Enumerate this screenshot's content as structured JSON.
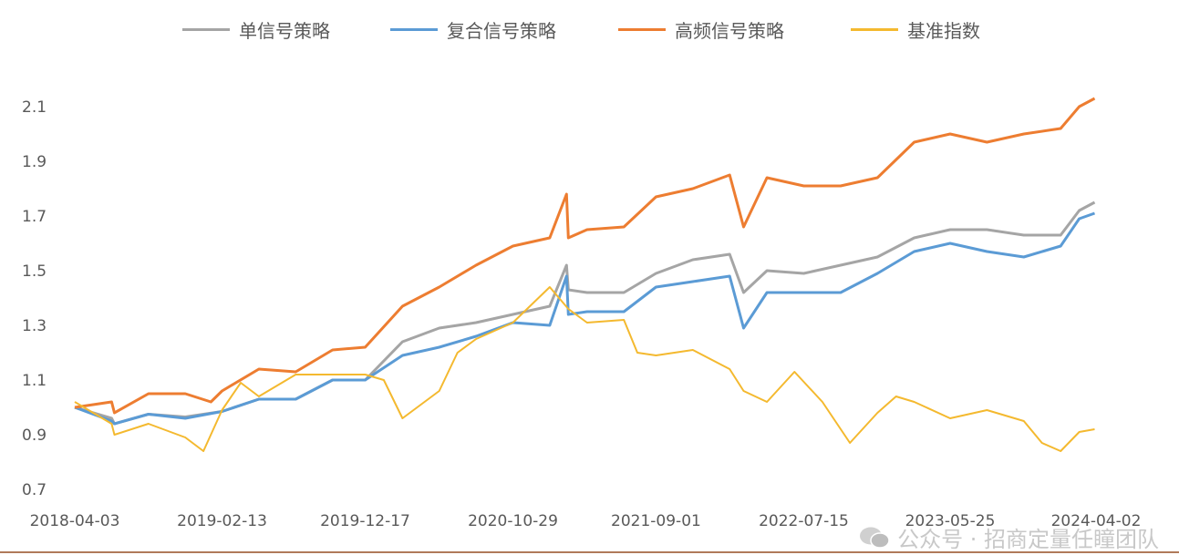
{
  "chart_data": {
    "type": "line",
    "title": "",
    "xlabel": "",
    "ylabel": "",
    "ylim": [
      0.7,
      2.2
    ],
    "y_ticks": [
      "0.7",
      "0.9",
      "1.1",
      "1.3",
      "1.5",
      "1.7",
      "1.9",
      "2.1"
    ],
    "x_ticks": [
      "2018-04-03",
      "2019-02-13",
      "2019-12-17",
      "2020-10-29",
      "2021-09-01",
      "2022-07-15",
      "2023-05-25",
      "2024-04-02"
    ],
    "grid": false,
    "legend_position": "top",
    "series": [
      {
        "name": "单信号策略",
        "color": "#A5A5A5",
        "points": [
          [
            "2018-04-03",
            1.0
          ],
          [
            "2018-06-21",
            0.96
          ],
          [
            "2018-06-27",
            0.94
          ],
          [
            "2018-09-08",
            0.975
          ],
          [
            "2018-11-26",
            0.965
          ],
          [
            "2019-02-13",
            0.985
          ],
          [
            "2019-05-03",
            1.03
          ],
          [
            "2019-07-21",
            1.03
          ],
          [
            "2019-10-08",
            1.1
          ],
          [
            "2019-12-17",
            1.1
          ],
          [
            "2020-03-06",
            1.24
          ],
          [
            "2020-05-24",
            1.29
          ],
          [
            "2020-08-11",
            1.31
          ],
          [
            "2020-10-29",
            1.34
          ],
          [
            "2021-01-16",
            1.37
          ],
          [
            "2021-02-21",
            1.52
          ],
          [
            "2021-02-25",
            1.43
          ],
          [
            "2021-04-06",
            1.42
          ],
          [
            "2021-06-24",
            1.42
          ],
          [
            "2021-09-01",
            1.49
          ],
          [
            "2021-11-19",
            1.54
          ],
          [
            "2022-02-06",
            1.56
          ],
          [
            "2022-03-08",
            1.42
          ],
          [
            "2022-04-27",
            1.5
          ],
          [
            "2022-07-15",
            1.49
          ],
          [
            "2022-10-02",
            1.52
          ],
          [
            "2022-12-20",
            1.55
          ],
          [
            "2023-03-09",
            1.62
          ],
          [
            "2023-05-25",
            1.65
          ],
          [
            "2023-08-12",
            1.65
          ],
          [
            "2023-10-30",
            1.63
          ],
          [
            "2024-01-17",
            1.63
          ],
          [
            "2024-02-26",
            1.72
          ],
          [
            "2024-03-30",
            1.75
          ]
        ]
      },
      {
        "name": "复合信号策略",
        "color": "#5B9BD5",
        "points": [
          [
            "2018-04-03",
            1.0
          ],
          [
            "2018-06-21",
            0.95
          ],
          [
            "2018-06-27",
            0.94
          ],
          [
            "2018-09-08",
            0.975
          ],
          [
            "2018-11-26",
            0.96
          ],
          [
            "2019-02-13",
            0.985
          ],
          [
            "2019-05-03",
            1.03
          ],
          [
            "2019-07-21",
            1.03
          ],
          [
            "2019-10-08",
            1.1
          ],
          [
            "2019-12-17",
            1.1
          ],
          [
            "2020-03-06",
            1.19
          ],
          [
            "2020-05-24",
            1.22
          ],
          [
            "2020-08-11",
            1.26
          ],
          [
            "2020-10-29",
            1.31
          ],
          [
            "2021-01-16",
            1.3
          ],
          [
            "2021-02-21",
            1.48
          ],
          [
            "2021-02-25",
            1.34
          ],
          [
            "2021-04-06",
            1.35
          ],
          [
            "2021-06-24",
            1.35
          ],
          [
            "2021-09-01",
            1.44
          ],
          [
            "2021-11-19",
            1.46
          ],
          [
            "2022-02-06",
            1.48
          ],
          [
            "2022-03-08",
            1.29
          ],
          [
            "2022-04-27",
            1.42
          ],
          [
            "2022-07-15",
            1.42
          ],
          [
            "2022-10-02",
            1.42
          ],
          [
            "2022-12-20",
            1.49
          ],
          [
            "2023-03-09",
            1.57
          ],
          [
            "2023-05-25",
            1.6
          ],
          [
            "2023-08-12",
            1.57
          ],
          [
            "2023-10-30",
            1.55
          ],
          [
            "2024-01-17",
            1.59
          ],
          [
            "2024-02-26",
            1.69
          ],
          [
            "2024-03-30",
            1.71
          ]
        ]
      },
      {
        "name": "高频信号策略",
        "color": "#ED7D31",
        "points": [
          [
            "2018-04-03",
            1.0
          ],
          [
            "2018-06-21",
            1.02
          ],
          [
            "2018-06-27",
            0.98
          ],
          [
            "2018-09-08",
            1.05
          ],
          [
            "2018-11-26",
            1.05
          ],
          [
            "2019-01-20",
            1.02
          ],
          [
            "2019-02-13",
            1.06
          ],
          [
            "2019-05-03",
            1.14
          ],
          [
            "2019-07-21",
            1.13
          ],
          [
            "2019-10-08",
            1.21
          ],
          [
            "2019-12-17",
            1.22
          ],
          [
            "2020-03-06",
            1.37
          ],
          [
            "2020-05-24",
            1.44
          ],
          [
            "2020-08-11",
            1.52
          ],
          [
            "2020-10-29",
            1.59
          ],
          [
            "2021-01-16",
            1.62
          ],
          [
            "2021-02-21",
            1.78
          ],
          [
            "2021-02-25",
            1.62
          ],
          [
            "2021-04-06",
            1.65
          ],
          [
            "2021-06-24",
            1.66
          ],
          [
            "2021-09-01",
            1.77
          ],
          [
            "2021-11-19",
            1.8
          ],
          [
            "2022-02-06",
            1.85
          ],
          [
            "2022-03-08",
            1.66
          ],
          [
            "2022-04-27",
            1.84
          ],
          [
            "2022-07-15",
            1.81
          ],
          [
            "2022-10-02",
            1.81
          ],
          [
            "2022-12-20",
            1.84
          ],
          [
            "2023-03-09",
            1.97
          ],
          [
            "2023-05-25",
            2.0
          ],
          [
            "2023-08-12",
            1.97
          ],
          [
            "2023-10-30",
            2.0
          ],
          [
            "2024-01-17",
            2.02
          ],
          [
            "2024-02-26",
            2.1
          ],
          [
            "2024-03-30",
            2.13
          ]
        ]
      },
      {
        "name": "基准指数",
        "color": "#F4B92F",
        "points": [
          [
            "2018-04-03",
            1.02
          ],
          [
            "2018-06-21",
            0.94
          ],
          [
            "2018-06-27",
            0.9
          ],
          [
            "2018-09-08",
            0.94
          ],
          [
            "2018-11-26",
            0.89
          ],
          [
            "2019-01-04",
            0.84
          ],
          [
            "2019-02-13",
            0.99
          ],
          [
            "2019-03-25",
            1.09
          ],
          [
            "2019-05-03",
            1.04
          ],
          [
            "2019-07-21",
            1.12
          ],
          [
            "2019-10-08",
            1.12
          ],
          [
            "2019-12-17",
            1.12
          ],
          [
            "2020-01-26",
            1.1
          ],
          [
            "2020-03-06",
            0.96
          ],
          [
            "2020-05-24",
            1.06
          ],
          [
            "2020-07-02",
            1.2
          ],
          [
            "2020-08-11",
            1.25
          ],
          [
            "2020-10-29",
            1.31
          ],
          [
            "2021-01-16",
            1.44
          ],
          [
            "2021-02-25",
            1.36
          ],
          [
            "2021-04-06",
            1.31
          ],
          [
            "2021-06-24",
            1.32
          ],
          [
            "2021-07-23",
            1.2
          ],
          [
            "2021-09-01",
            1.19
          ],
          [
            "2021-11-19",
            1.21
          ],
          [
            "2022-02-06",
            1.14
          ],
          [
            "2022-03-08",
            1.06
          ],
          [
            "2022-04-27",
            1.02
          ],
          [
            "2022-06-25",
            1.13
          ],
          [
            "2022-08-24",
            1.02
          ],
          [
            "2022-10-22",
            0.87
          ],
          [
            "2022-12-20",
            0.98
          ],
          [
            "2023-01-29",
            1.04
          ],
          [
            "2023-03-09",
            1.02
          ],
          [
            "2023-05-25",
            0.96
          ],
          [
            "2023-08-12",
            0.99
          ],
          [
            "2023-10-30",
            0.95
          ],
          [
            "2023-12-08",
            0.87
          ],
          [
            "2024-01-17",
            0.84
          ],
          [
            "2024-02-26",
            0.91
          ],
          [
            "2024-03-30",
            0.92
          ]
        ]
      }
    ]
  },
  "watermark": "公众号 · 招商定量任瞳团队"
}
